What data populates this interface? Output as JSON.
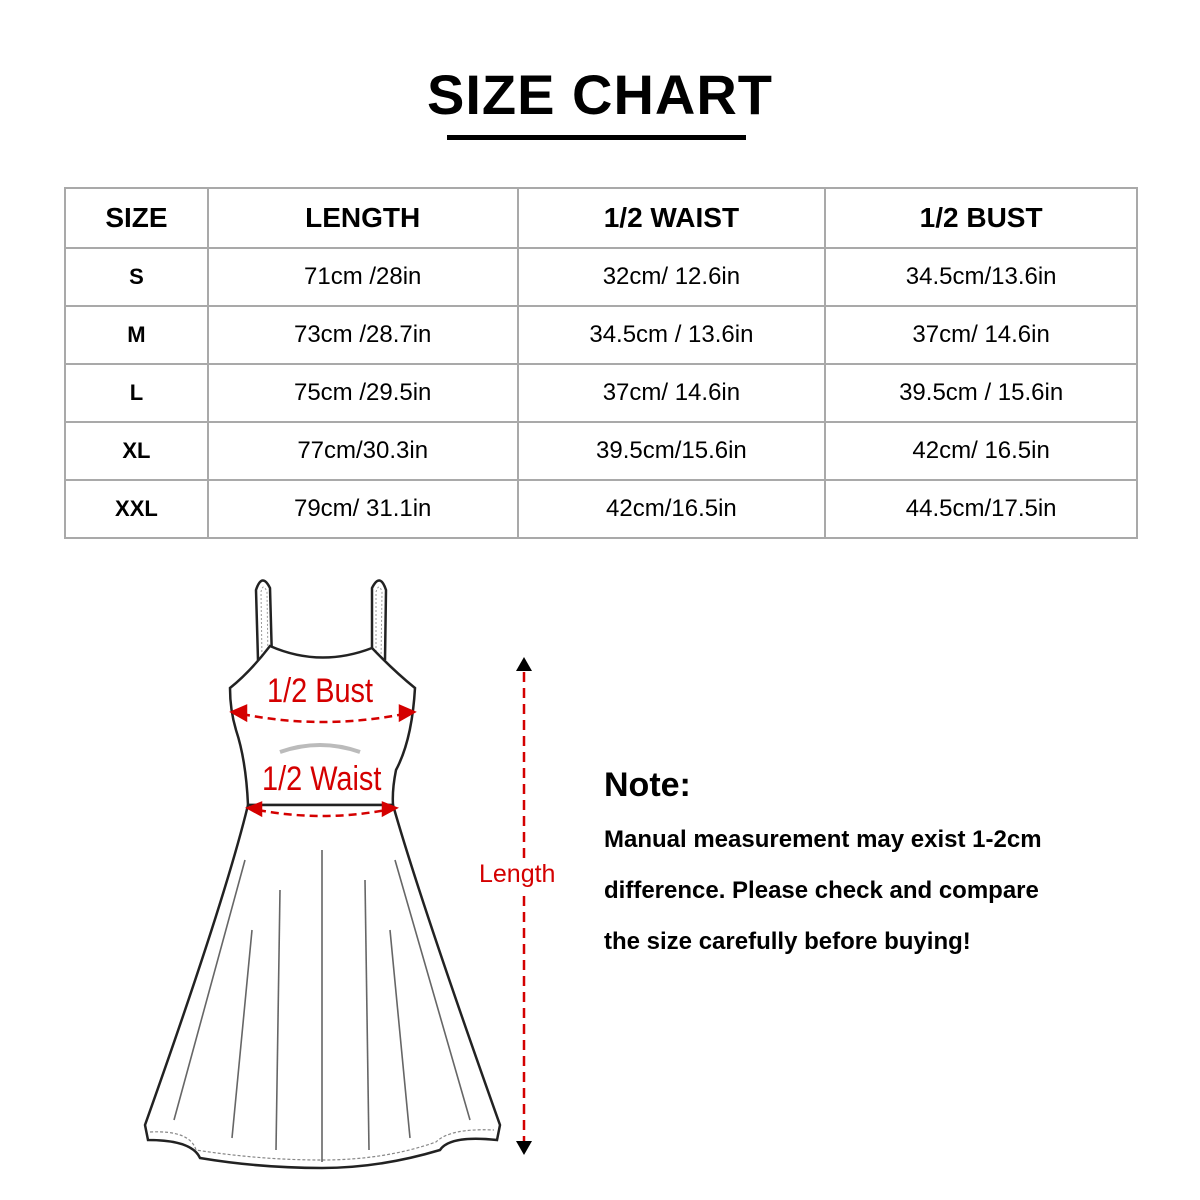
{
  "title": "SIZE CHART",
  "table": {
    "headers": [
      "SIZE",
      "LENGTH",
      "1/2 WAIST",
      "1/2 BUST"
    ],
    "rows": [
      [
        "S",
        "71cm /28in",
        "32cm/ 12.6in",
        "34.5cm/13.6in"
      ],
      [
        "M",
        "73cm /28.7in",
        "34.5cm / 13.6in",
        "37cm/ 14.6in"
      ],
      [
        "L",
        "75cm /29.5in",
        "37cm/ 14.6in",
        "39.5cm / 15.6in"
      ],
      [
        "XL",
        "77cm/30.3in",
        "39.5cm/15.6in",
        "42cm/ 16.5in"
      ],
      [
        "XXL",
        "79cm/ 31.1in",
        "42cm/16.5in",
        "44.5cm/17.5in"
      ]
    ]
  },
  "diagram": {
    "bust_label": "1/2 Bust",
    "waist_label": "1/2 Waist",
    "length_label": "Length",
    "accent_color": "#d40000"
  },
  "note": {
    "title": "Note:",
    "lines": [
      "Manual measurement may exist 1-2cm",
      "difference. Please check and compare",
      "the size carefully before buying!"
    ]
  }
}
